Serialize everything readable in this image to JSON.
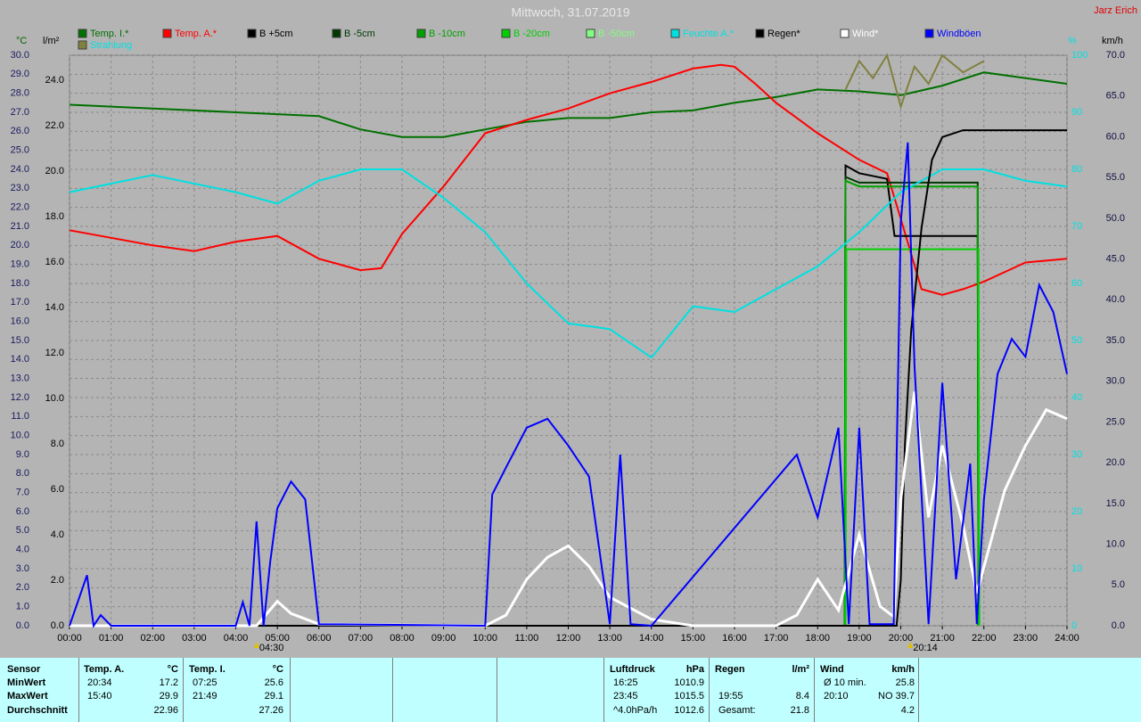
{
  "chart_data": {
    "type": "line",
    "title": "Mittwoch, 31.07.2019",
    "author": "Jarz Erich",
    "ylabel": "°C",
    "y2label": "l/m²",
    "y3label": "%",
    "y4label": "km/h",
    "xlim": [
      0,
      24
    ],
    "xticks": [
      {
        "value": 0,
        "label": "00:00"
      },
      {
        "value": 1,
        "label": "01:00"
      },
      {
        "value": 2,
        "label": "02:00"
      },
      {
        "value": 3,
        "label": "03:00"
      },
      {
        "value": 4,
        "label": "04:00"
      },
      {
        "value": 5,
        "label": "05:00"
      },
      {
        "value": 6,
        "label": "06:00"
      },
      {
        "value": 7,
        "label": "07:00"
      },
      {
        "value": 8,
        "label": "08:00"
      },
      {
        "value": 9,
        "label": "09:00"
      },
      {
        "value": 10,
        "label": "10:00"
      },
      {
        "value": 11,
        "label": "11:00"
      },
      {
        "value": 12,
        "label": "12:00"
      },
      {
        "value": 13,
        "label": "13:00"
      },
      {
        "value": 14,
        "label": "14:00"
      },
      {
        "value": 15,
        "label": "15:00"
      },
      {
        "value": 16,
        "label": "16:00"
      },
      {
        "value": 17,
        "label": "17:00"
      },
      {
        "value": 18,
        "label": "18:00"
      },
      {
        "value": 19,
        "label": "19:00"
      },
      {
        "value": 20,
        "label": "20:00"
      },
      {
        "value": 21,
        "label": "21:00"
      },
      {
        "value": 22,
        "label": "22:00"
      },
      {
        "value": 23,
        "label": "23:00"
      },
      {
        "value": 24,
        "label": "24:00"
      }
    ],
    "ylim": [
      0,
      30
    ],
    "yticks": [
      {
        "value": 0,
        "label": "0.0"
      },
      {
        "value": 1,
        "label": "1.0"
      },
      {
        "value": 2,
        "label": "2.0"
      },
      {
        "value": 3,
        "label": "3.0"
      },
      {
        "value": 4,
        "label": "4.0"
      },
      {
        "value": 5,
        "label": "5.0"
      },
      {
        "value": 6,
        "label": "6.0"
      },
      {
        "value": 7,
        "label": "7.0"
      },
      {
        "value": 8,
        "label": "8.0"
      },
      {
        "value": 9,
        "label": "9.0"
      },
      {
        "value": 10,
        "label": "10.0"
      },
      {
        "value": 11,
        "label": "11.0"
      },
      {
        "value": 12,
        "label": "12.0"
      },
      {
        "value": 13,
        "label": "13.0"
      },
      {
        "value": 14,
        "label": "14.0"
      },
      {
        "value": 15,
        "label": "15.0"
      },
      {
        "value": 16,
        "label": "16.0"
      },
      {
        "value": 17,
        "label": "17.0"
      },
      {
        "value": 18,
        "label": "18.0"
      },
      {
        "value": 19,
        "label": "19.0"
      },
      {
        "value": 20,
        "label": "20.0"
      },
      {
        "value": 21,
        "label": "21.0"
      },
      {
        "value": 22,
        "label": "22.0"
      },
      {
        "value": 23,
        "label": "23.0"
      },
      {
        "value": 24,
        "label": "24.0"
      },
      {
        "value": 25,
        "label": "25.0"
      },
      {
        "value": 26,
        "label": "26.0"
      },
      {
        "value": 27,
        "label": "27.0"
      },
      {
        "value": 28,
        "label": "28.0"
      },
      {
        "value": 29,
        "label": "29.0"
      },
      {
        "value": 30,
        "label": "30.0"
      }
    ],
    "y2lim": [
      0,
      25.1
    ],
    "y2ticks": [
      {
        "value": 0,
        "label": "0.0"
      },
      {
        "value": 2,
        "label": "2.0"
      },
      {
        "value": 4,
        "label": "4.0"
      },
      {
        "value": 6,
        "label": "6.0"
      },
      {
        "value": 8,
        "label": "8.0"
      },
      {
        "value": 10,
        "label": "10.0"
      },
      {
        "value": 12,
        "label": "12.0"
      },
      {
        "value": 14,
        "label": "14.0"
      },
      {
        "value": 16,
        "label": "16.0"
      },
      {
        "value": 18,
        "label": "18.0"
      },
      {
        "value": 20,
        "label": "20.0"
      },
      {
        "value": 22,
        "label": "22.0"
      },
      {
        "value": 24,
        "label": "24.0"
      }
    ],
    "y3lim": [
      0,
      100
    ],
    "y3ticks": [
      0,
      10,
      20,
      30,
      40,
      50,
      60,
      70,
      80,
      90,
      100
    ],
    "y4lim": [
      0,
      70
    ],
    "y4ticks": [
      {
        "value": 0,
        "label": "0.0"
      },
      {
        "value": 5,
        "label": "5.0"
      },
      {
        "value": 10,
        "label": "10.0"
      },
      {
        "value": 15,
        "label": "15.0"
      },
      {
        "value": 20,
        "label": "20.0"
      },
      {
        "value": 25,
        "label": "25.0"
      },
      {
        "value": 30,
        "label": "30.0"
      },
      {
        "value": 35,
        "label": "35.0"
      },
      {
        "value": 40,
        "label": "40.0"
      },
      {
        "value": 45,
        "label": "45.0"
      },
      {
        "value": 50,
        "label": "50.0"
      },
      {
        "value": 55,
        "label": "55.0"
      },
      {
        "value": 60,
        "label": "60.0"
      },
      {
        "value": 65,
        "label": "65.0"
      },
      {
        "value": 70,
        "label": "70.0"
      }
    ],
    "grid": true,
    "annotations": [
      {
        "x": 4.5,
        "label": "04:30"
      },
      {
        "x": 20.23,
        "label": "20:14"
      }
    ],
    "series": [
      {
        "name": "Temp. I.*",
        "color": "#007000",
        "axis": "y",
        "x": [
          0,
          2,
          4,
          6,
          7,
          8,
          9,
          10,
          11,
          12,
          13,
          14,
          15,
          16,
          17,
          18,
          19,
          20,
          21,
          22,
          23,
          24
        ],
        "values": [
          27.4,
          27.2,
          27.0,
          26.8,
          26.1,
          25.7,
          25.7,
          26.1,
          26.5,
          26.7,
          26.7,
          27.0,
          27.1,
          27.5,
          27.8,
          28.2,
          28.1,
          27.9,
          28.4,
          29.1,
          28.8,
          28.5
        ]
      },
      {
        "name": "Temp. A.*",
        "color": "#ff0000",
        "axis": "y",
        "x": [
          0,
          1,
          2,
          3,
          4,
          5,
          6,
          7,
          7.5,
          8,
          9,
          10,
          11,
          12,
          13,
          14,
          15,
          15.67,
          16,
          16.5,
          17,
          18,
          19,
          19.67,
          20,
          20.5,
          21,
          21.5,
          22,
          23,
          24
        ],
        "values": [
          20.8,
          20.4,
          20.0,
          19.7,
          20.2,
          20.5,
          19.3,
          18.7,
          18.8,
          20.6,
          23.1,
          25.9,
          26.6,
          27.2,
          28.0,
          28.6,
          29.3,
          29.5,
          29.4,
          28.5,
          27.5,
          25.9,
          24.5,
          23.8,
          21.4,
          17.7,
          17.4,
          17.7,
          18.1,
          19.1,
          19.3
        ]
      },
      {
        "name": "B +5cm",
        "color": "#000000",
        "axis": "y",
        "x": [
          18.65,
          18.67,
          19,
          19.67,
          19.85,
          21.85,
          21.87
        ],
        "values": [
          0,
          24.2,
          23.8,
          23.5,
          20.5,
          20.5,
          0
        ]
      },
      {
        "name": "B -5cm",
        "color": "#003800",
        "axis": "y",
        "x": [
          18.65,
          18.67,
          19,
          21.85,
          21.87
        ],
        "values": [
          0,
          23.6,
          23.3,
          23.3,
          0
        ]
      },
      {
        "name": "B -10cm",
        "color": "#00a000",
        "axis": "y",
        "x": [
          18.65,
          18.67,
          19,
          21.85,
          21.87
        ],
        "values": [
          0,
          23.4,
          23.1,
          23.1,
          0
        ]
      },
      {
        "name": "B -20cm",
        "color": "#00d000",
        "axis": "y",
        "x": [
          18.67,
          18.69,
          21.87,
          21.89
        ],
        "values": [
          0,
          19.8,
          19.8,
          0
        ]
      },
      {
        "name": "B -50cm",
        "color": "#80ff80",
        "axis": "y",
        "x": [],
        "values": []
      },
      {
        "name": "Feuchte A.*",
        "color": "#00e0e0",
        "axis": "y3",
        "x": [
          0,
          2,
          4,
          5,
          6,
          7,
          8,
          9,
          10,
          11,
          12,
          13,
          14,
          15,
          16,
          17,
          18,
          19,
          20,
          21,
          22,
          23,
          24
        ],
        "values": [
          76,
          79,
          76,
          74,
          78,
          80,
          80,
          75,
          69,
          60,
          53,
          52,
          47,
          56,
          55,
          59,
          63,
          69,
          76,
          80,
          80,
          78,
          77
        ]
      },
      {
        "name": "Regen*",
        "color": "#000000",
        "axis": "y2",
        "x": [
          0,
          19.9,
          20,
          20.1,
          20.25,
          20.5,
          20.75,
          21,
          21.5,
          24
        ],
        "values": [
          0,
          0,
          2,
          8,
          13,
          17.5,
          20.5,
          21.5,
          21.8,
          21.8
        ]
      },
      {
        "name": "Wind*",
        "color": "#ffffff",
        "axis": "y4",
        "x": [
          0,
          4.5,
          5,
          5.33,
          6,
          10,
          10.5,
          11,
          11.5,
          12,
          12.5,
          13,
          14,
          15,
          17,
          17.5,
          18,
          18.5,
          19,
          19.5,
          19.83,
          20,
          20.33,
          20.67,
          21,
          21.5,
          21.83,
          22.5,
          23,
          23.5,
          24
        ],
        "values": [
          0,
          0,
          3,
          1.5,
          0.2,
          0,
          1.3,
          5.7,
          8.4,
          9.8,
          7.3,
          3.5,
          0.8,
          0,
          0,
          1.3,
          5.7,
          1.9,
          11.2,
          2.4,
          1.1,
          15.5,
          28.7,
          13.3,
          22.1,
          12.3,
          4,
          16.6,
          22.1,
          26.5,
          25.4
        ]
      },
      {
        "name": "Windböen",
        "color": "#0000ff",
        "axis": "y4",
        "x": [
          0,
          0.42,
          0.58,
          0.75,
          1,
          4,
          4.17,
          4.33,
          4.5,
          4.67,
          4.83,
          5,
          5.33,
          5.67,
          6,
          10,
          10.17,
          10.5,
          11,
          11.5,
          12,
          12.5,
          13,
          13.25,
          13.5,
          14,
          17.5,
          18,
          18.5,
          18.75,
          19,
          19.25,
          19.83,
          20,
          20.17,
          20.33,
          20.67,
          21,
          21.33,
          21.67,
          21.83,
          22,
          22.33,
          22.67,
          23,
          23.33,
          23.67,
          24
        ],
        "values": [
          0,
          6.2,
          0,
          1.3,
          0,
          0,
          2.9,
          0,
          12.8,
          0,
          7.9,
          14.4,
          17.7,
          15.5,
          0.2,
          0,
          16.1,
          19.4,
          24.3,
          25.4,
          22.1,
          18.3,
          0.2,
          21,
          0.2,
          0,
          21,
          13.3,
          24.3,
          0.2,
          24.3,
          0.2,
          0.2,
          49.5,
          59.3,
          31.9,
          0.2,
          29.8,
          5.7,
          19.9,
          0.2,
          15.5,
          30.9,
          35.2,
          33,
          41.8,
          38.5,
          30.9
        ]
      },
      {
        "name": "Strahlung",
        "color": "#808040",
        "axis": "y3",
        "x": [
          18.67,
          19,
          19.33,
          19.67,
          20,
          20.33,
          20.67,
          21,
          21.5,
          22
        ],
        "values": [
          94,
          99,
          96,
          100,
          91,
          98,
          95,
          100,
          97,
          99
        ]
      }
    ]
  },
  "table": {
    "row_labels": [
      "Sensor",
      "MinWert",
      "MaxWert",
      "Durchschnitt"
    ],
    "groups": [
      {
        "name": "Temp. A.",
        "unit": "°C",
        "rows": [
          [
            "20:34",
            "17.2"
          ],
          [
            "15:40",
            "29.9"
          ],
          [
            null,
            "22.96"
          ]
        ]
      },
      {
        "name": "Temp. I.",
        "unit": "°C",
        "rows": [
          [
            "07:25",
            "25.6"
          ],
          [
            "21:49",
            "29.1"
          ],
          [
            null,
            "27.26"
          ]
        ]
      },
      {
        "name": "Luftdruck",
        "unit": "hPa",
        "rows": [
          [
            "16:25",
            "1010.9"
          ],
          [
            "23:45",
            "1015.5"
          ],
          [
            "^4.0hPa/h",
            "1012.6"
          ]
        ]
      },
      {
        "name": "Regen",
        "unit": "l/m²",
        "rows": [
          [
            null,
            null
          ],
          [
            "19:55",
            "8.4"
          ],
          [
            "Gesamt:",
            "21.8"
          ]
        ]
      },
      {
        "name": "Wind",
        "unit": "km/h",
        "rows": [
          [
            "Ø 10 min.",
            "25.8"
          ],
          [
            "20:10",
            "NO 39.7"
          ],
          [
            null,
            "4.2"
          ]
        ]
      }
    ]
  }
}
